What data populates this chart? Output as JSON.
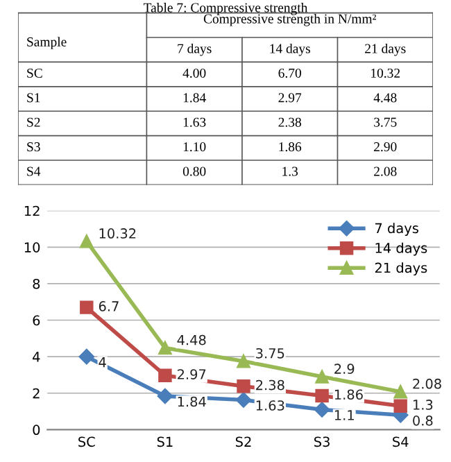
{
  "chart_data": [
    {
      "type": "other",
      "title": "Table 7: Compressive strength",
      "annotations": [
        "Sample",
        "Compressive strength in N/mm²",
        "7 days",
        "14 days",
        "21 days",
        "SC",
        "4.00",
        "6.70",
        "10.32",
        "S1",
        "1.84",
        "2.97",
        "4.48",
        "S2",
        "1.63",
        "2.38",
        "3.75",
        "S3",
        "1.10",
        "1.86",
        "2.90",
        "S4",
        "0.80",
        "1.3",
        "2.08"
      ]
    },
    {
      "type": "line",
      "categories": [
        "SC",
        "S1",
        "S2",
        "S3",
        "S4"
      ],
      "series": [
        {
          "name": "7 days",
          "color": "#4a7ebb",
          "marker": "diamond",
          "values": [
            4,
            1.84,
            1.63,
            1.1,
            0.8
          ]
        },
        {
          "name": "14 days",
          "color": "#be4b48",
          "marker": "square",
          "values": [
            6.7,
            2.97,
            2.38,
            1.86,
            1.3
          ]
        },
        {
          "name": "21 days",
          "color": "#98b954",
          "marker": "triangle",
          "values": [
            10.32,
            4.48,
            3.75,
            2.9,
            2.08
          ]
        }
      ],
      "ylim": [
        0,
        12
      ],
      "yticks": [
        0,
        2,
        4,
        6,
        8,
        10,
        12
      ],
      "grid": "y",
      "legend": "top right",
      "data_labels": true
    }
  ]
}
